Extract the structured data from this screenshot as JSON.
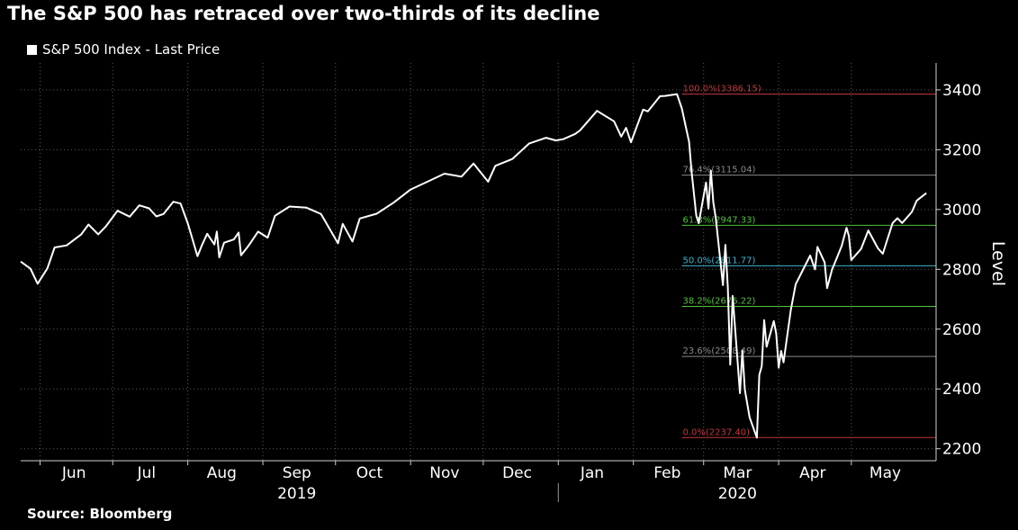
{
  "title": "The S&P 500 has retraced over two-thirds of its decline",
  "source": "Source: Bloomberg",
  "chart_data": {
    "type": "line",
    "series": [
      {
        "name": "S&P 500 Index - Last Price",
        "color": "#ffffff",
        "points": [
          [
            "2019-05-24",
            2826
          ],
          [
            "2019-05-28",
            2802
          ],
          [
            "2019-05-31",
            2752
          ],
          [
            "2019-06-04",
            2803
          ],
          [
            "2019-06-07",
            2873
          ],
          [
            "2019-06-12",
            2880
          ],
          [
            "2019-06-18",
            2917
          ],
          [
            "2019-06-21",
            2950
          ],
          [
            "2019-06-25",
            2917
          ],
          [
            "2019-06-28",
            2942
          ],
          [
            "2019-07-03",
            2996
          ],
          [
            "2019-07-08",
            2976
          ],
          [
            "2019-07-12",
            3014
          ],
          [
            "2019-07-16",
            3004
          ],
          [
            "2019-07-19",
            2977
          ],
          [
            "2019-07-22",
            2985
          ],
          [
            "2019-07-26",
            3026
          ],
          [
            "2019-07-29",
            3020
          ],
          [
            "2019-08-01",
            2954
          ],
          [
            "2019-08-05",
            2844
          ],
          [
            "2019-08-07",
            2884
          ],
          [
            "2019-08-09",
            2919
          ],
          [
            "2019-08-12",
            2883
          ],
          [
            "2019-08-13",
            2926
          ],
          [
            "2019-08-14",
            2840
          ],
          [
            "2019-08-16",
            2889
          ],
          [
            "2019-08-20",
            2900
          ],
          [
            "2019-08-22",
            2923
          ],
          [
            "2019-08-23",
            2847
          ],
          [
            "2019-08-26",
            2878
          ],
          [
            "2019-08-30",
            2926
          ],
          [
            "2019-09-03",
            2906
          ],
          [
            "2019-09-06",
            2979
          ],
          [
            "2019-09-12",
            3010
          ],
          [
            "2019-09-19",
            3006
          ],
          [
            "2019-09-25",
            2985
          ],
          [
            "2019-10-02",
            2887
          ],
          [
            "2019-10-04",
            2952
          ],
          [
            "2019-10-08",
            2893
          ],
          [
            "2019-10-11",
            2970
          ],
          [
            "2019-10-18",
            2986
          ],
          [
            "2019-10-25",
            3023
          ],
          [
            "2019-11-01",
            3067
          ],
          [
            "2019-11-08",
            3093
          ],
          [
            "2019-11-15",
            3120
          ],
          [
            "2019-11-22",
            3110
          ],
          [
            "2019-11-27",
            3154
          ],
          [
            "2019-12-03",
            3093
          ],
          [
            "2019-12-06",
            3146
          ],
          [
            "2019-12-13",
            3169
          ],
          [
            "2019-12-20",
            3221
          ],
          [
            "2019-12-27",
            3240
          ],
          [
            "2019-12-31",
            3231
          ],
          [
            "2020-01-03",
            3235
          ],
          [
            "2020-01-08",
            3253
          ],
          [
            "2020-01-10",
            3265
          ],
          [
            "2020-01-17",
            3330
          ],
          [
            "2020-01-24",
            3295
          ],
          [
            "2020-01-27",
            3244
          ],
          [
            "2020-01-29",
            3273
          ],
          [
            "2020-01-31",
            3225
          ],
          [
            "2020-02-05",
            3334
          ],
          [
            "2020-02-07",
            3328
          ],
          [
            "2020-02-12",
            3379
          ],
          [
            "2020-02-14",
            3380
          ],
          [
            "2020-02-19",
            3386
          ],
          [
            "2020-02-21",
            3338
          ],
          [
            "2020-02-24",
            3226
          ],
          [
            "2020-02-25",
            3128
          ],
          [
            "2020-02-27",
            2979
          ],
          [
            "2020-02-28",
            2954
          ],
          [
            "2020-03-02",
            3090
          ],
          [
            "2020-03-03",
            3003
          ],
          [
            "2020-03-04",
            3130
          ],
          [
            "2020-03-05",
            3024
          ],
          [
            "2020-03-06",
            2972
          ],
          [
            "2020-03-09",
            2747
          ],
          [
            "2020-03-10",
            2882
          ],
          [
            "2020-03-11",
            2741
          ],
          [
            "2020-03-12",
            2481
          ],
          [
            "2020-03-13",
            2711
          ],
          [
            "2020-03-16",
            2386
          ],
          [
            "2020-03-17",
            2529
          ],
          [
            "2020-03-18",
            2398
          ],
          [
            "2020-03-20",
            2305
          ],
          [
            "2020-03-23",
            2237
          ],
          [
            "2020-03-24",
            2447
          ],
          [
            "2020-03-25",
            2476
          ],
          [
            "2020-03-26",
            2630
          ],
          [
            "2020-03-27",
            2541
          ],
          [
            "2020-03-30",
            2627
          ],
          [
            "2020-03-31",
            2585
          ],
          [
            "2020-04-01",
            2471
          ],
          [
            "2020-04-02",
            2527
          ],
          [
            "2020-04-03",
            2489
          ],
          [
            "2020-04-06",
            2664
          ],
          [
            "2020-04-08",
            2750
          ],
          [
            "2020-04-14",
            2846
          ],
          [
            "2020-04-16",
            2800
          ],
          [
            "2020-04-17",
            2875
          ],
          [
            "2020-04-20",
            2823
          ],
          [
            "2020-04-21",
            2737
          ],
          [
            "2020-04-23",
            2798
          ],
          [
            "2020-04-27",
            2878
          ],
          [
            "2020-04-29",
            2939
          ],
          [
            "2020-04-30",
            2912
          ],
          [
            "2020-05-01",
            2831
          ],
          [
            "2020-05-05",
            2868
          ],
          [
            "2020-05-08",
            2930
          ],
          [
            "2020-05-12",
            2870
          ],
          [
            "2020-05-14",
            2852
          ],
          [
            "2020-05-18",
            2954
          ],
          [
            "2020-05-20",
            2971
          ],
          [
            "2020-05-22",
            2955
          ],
          [
            "2020-05-26",
            2992
          ],
          [
            "2020-05-28",
            3030
          ],
          [
            "2020-06-01",
            3055
          ]
        ]
      }
    ],
    "fib_levels": [
      {
        "label": "100.0%(3386.15)",
        "value": 3386.15,
        "color": "#c0363b"
      },
      {
        "label": "76.4%(3115.04)",
        "value": 3115.04,
        "color": "#8a8a8a"
      },
      {
        "label": "61.8%(2947.33)",
        "value": 2947.33,
        "color": "#52c23b"
      },
      {
        "label": "50.0%(2811.77)",
        "value": 2811.77,
        "color": "#3fb4cf"
      },
      {
        "label": "38.2%(2676.22)",
        "value": 2676.22,
        "color": "#52c23b"
      },
      {
        "label": "23.6%(2508.49)",
        "value": 2508.49,
        "color": "#8a8a8a"
      },
      {
        "label": "0.0%(2237.40)",
        "value": 2237.4,
        "color": "#c0363b"
      }
    ],
    "fib_start": "2020-02-21",
    "months": [
      {
        "label": "Jun",
        "date": "2019-06-15"
      },
      {
        "label": "Jul",
        "date": "2019-07-15"
      },
      {
        "label": "Aug",
        "date": "2019-08-15"
      },
      {
        "label": "Sep",
        "date": "2019-09-15"
      },
      {
        "label": "Oct",
        "date": "2019-10-15"
      },
      {
        "label": "Nov",
        "date": "2019-11-15"
      },
      {
        "label": "Dec",
        "date": "2019-12-15"
      },
      {
        "label": "Jan",
        "date": "2020-01-15"
      },
      {
        "label": "Feb",
        "date": "2020-02-15"
      },
      {
        "label": "Mar",
        "date": "2020-03-15"
      },
      {
        "label": "Apr",
        "date": "2020-04-15"
      },
      {
        "label": "May",
        "date": "2020-05-15"
      }
    ],
    "month_boundaries": [
      "2019-06-01",
      "2019-07-01",
      "2019-08-01",
      "2019-09-01",
      "2019-10-01",
      "2019-11-01",
      "2019-12-01",
      "2020-01-01",
      "2020-02-01",
      "2020-03-01",
      "2020-04-01",
      "2020-05-01"
    ],
    "years": [
      {
        "label": "2019",
        "date": "2019-09-15"
      },
      {
        "label": "2020",
        "date": "2020-03-15"
      }
    ],
    "year_divider": "2020-01-01",
    "xlim": [
      "2019-05-24",
      "2020-06-05"
    ],
    "yticks": [
      2200,
      2400,
      2600,
      2800,
      3000,
      3200,
      3400
    ],
    "ylim": [
      2160,
      3490
    ],
    "ylabel": "Level",
    "grid": true,
    "legend": "top-left"
  }
}
